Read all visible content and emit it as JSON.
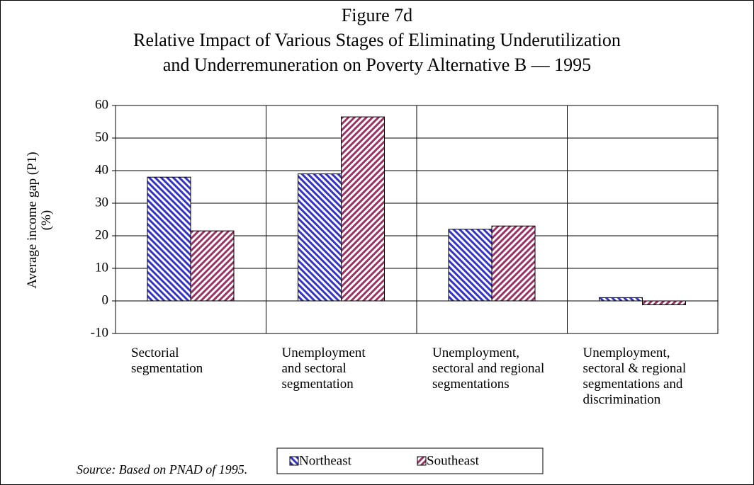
{
  "chart_data": {
    "type": "bar",
    "title": "Figure 7d\nRelative Impact of Various Stages of Eliminating Underutilization\nand Underremuneration on Poverty Alternative B — 1995",
    "ylabel": "Average income gap (P1)\n(%)",
    "categories": [
      "Sectorial\nsegmentation",
      "Unemployment\nand sectoral\nsegmentation",
      "Unemployment,\nsectoral and regional\nsegmentations",
      "Unemployment,\nsectoral & regional\nsegmentations and\ndiscrimination"
    ],
    "series": [
      {
        "name": "Northeast",
        "color": "#3333cc",
        "values": [
          38,
          39,
          22,
          1
        ]
      },
      {
        "name": "Southeast",
        "color": "#993366",
        "values": [
          21.5,
          56.5,
          23,
          -1.2
        ]
      }
    ],
    "ylim": [
      -10,
      60
    ],
    "yticks": [
      -10,
      0,
      10,
      20,
      30,
      40,
      50,
      60
    ],
    "grid": true,
    "legend": "bottom",
    "source": "Source: Based on PNAD of 1995."
  }
}
